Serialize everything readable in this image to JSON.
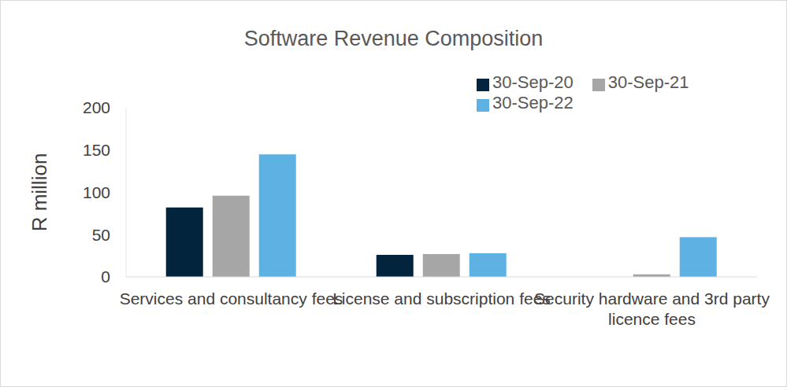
{
  "chart_data": {
    "type": "bar",
    "title": "Software Revenue Composition",
    "y_label": "R million",
    "categories": [
      "Services and consultancy fees",
      "License and subscription fees",
      "Security hardware and 3rd party licence fees"
    ],
    "series": [
      {
        "name": "30-Sep-20",
        "color": "#03243d",
        "values": [
          82,
          26,
          0
        ]
      },
      {
        "name": "30-Sep-21",
        "color": "#a6a6a6",
        "values": [
          96,
          27,
          3
        ]
      },
      {
        "name": "30-Sep-22",
        "color": "#5eb1e3",
        "values": [
          145,
          28,
          47
        ]
      }
    ],
    "ylim": [
      0,
      200
    ],
    "yticks": [
      0,
      50,
      100,
      150,
      200
    ],
    "grid": false,
    "legend": "top-right"
  }
}
